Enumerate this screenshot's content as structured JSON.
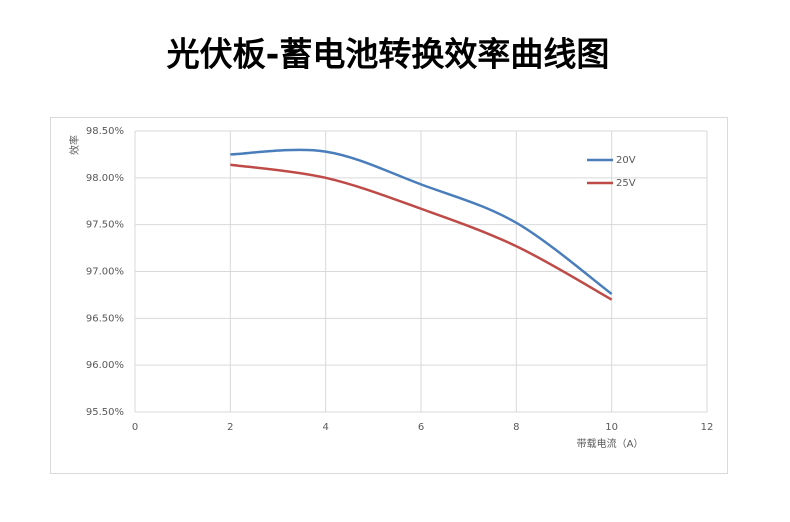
{
  "chart_data": {
    "type": "line",
    "title": "光伏板-蓄电池转换效率曲线图",
    "y_label": "效率",
    "x_label": "带载电流（A）",
    "x": [
      2,
      4,
      6,
      8,
      10
    ],
    "series": [
      {
        "name": "20V",
        "color": "#4a7ebb",
        "values": [
          98.25,
          98.28,
          97.93,
          97.52,
          96.76
        ]
      },
      {
        "name": "25V",
        "color": "#be4b48",
        "values": [
          98.14,
          98.0,
          97.67,
          97.27,
          96.7
        ]
      }
    ],
    "xlim": [
      0,
      12
    ],
    "xticks": [
      0,
      2,
      4,
      6,
      8,
      10,
      12
    ],
    "ylim": [
      95.5,
      98.5
    ],
    "yticks": [
      {
        "value": 95.5,
        "label": "95.50%"
      },
      {
        "value": 96,
        "label": "96.00%"
      },
      {
        "value": 96.5,
        "label": "96.50%"
      },
      {
        "value": 97,
        "label": "97.00%"
      },
      {
        "value": 97.5,
        "label": "97.50%"
      },
      {
        "value": 98,
        "label": "98.00%"
      },
      {
        "value": 98.5,
        "label": "98.50%"
      }
    ],
    "grid": true,
    "legend": "right"
  }
}
